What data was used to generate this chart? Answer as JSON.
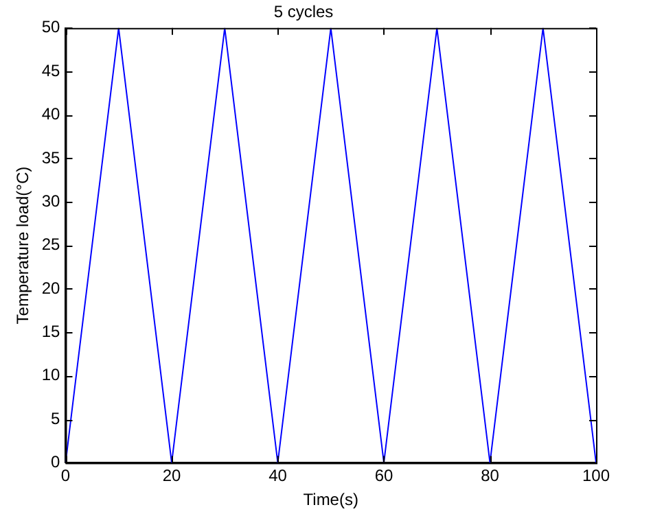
{
  "chart_data": {
    "type": "line",
    "title": "5 cycles",
    "xlabel": "Time(s)",
    "ylabel": "Temperature load(°C)",
    "x": [
      0,
      10,
      20,
      30,
      40,
      50,
      60,
      70,
      80,
      90,
      100
    ],
    "series": [
      {
        "color": "#0000ff",
        "values": [
          0,
          50,
          0,
          50,
          0,
          50,
          0,
          50,
          0,
          50,
          0
        ]
      }
    ],
    "xlim": [
      0,
      100
    ],
    "xticks": [
      0,
      20,
      40,
      60,
      80,
      100
    ],
    "ylim": [
      0,
      50
    ],
    "yticks": [
      0,
      5,
      10,
      15,
      20,
      25,
      30,
      35,
      40,
      45,
      50
    ],
    "grid": false,
    "legend": false,
    "marker": "none",
    "line_style": "solid"
  }
}
